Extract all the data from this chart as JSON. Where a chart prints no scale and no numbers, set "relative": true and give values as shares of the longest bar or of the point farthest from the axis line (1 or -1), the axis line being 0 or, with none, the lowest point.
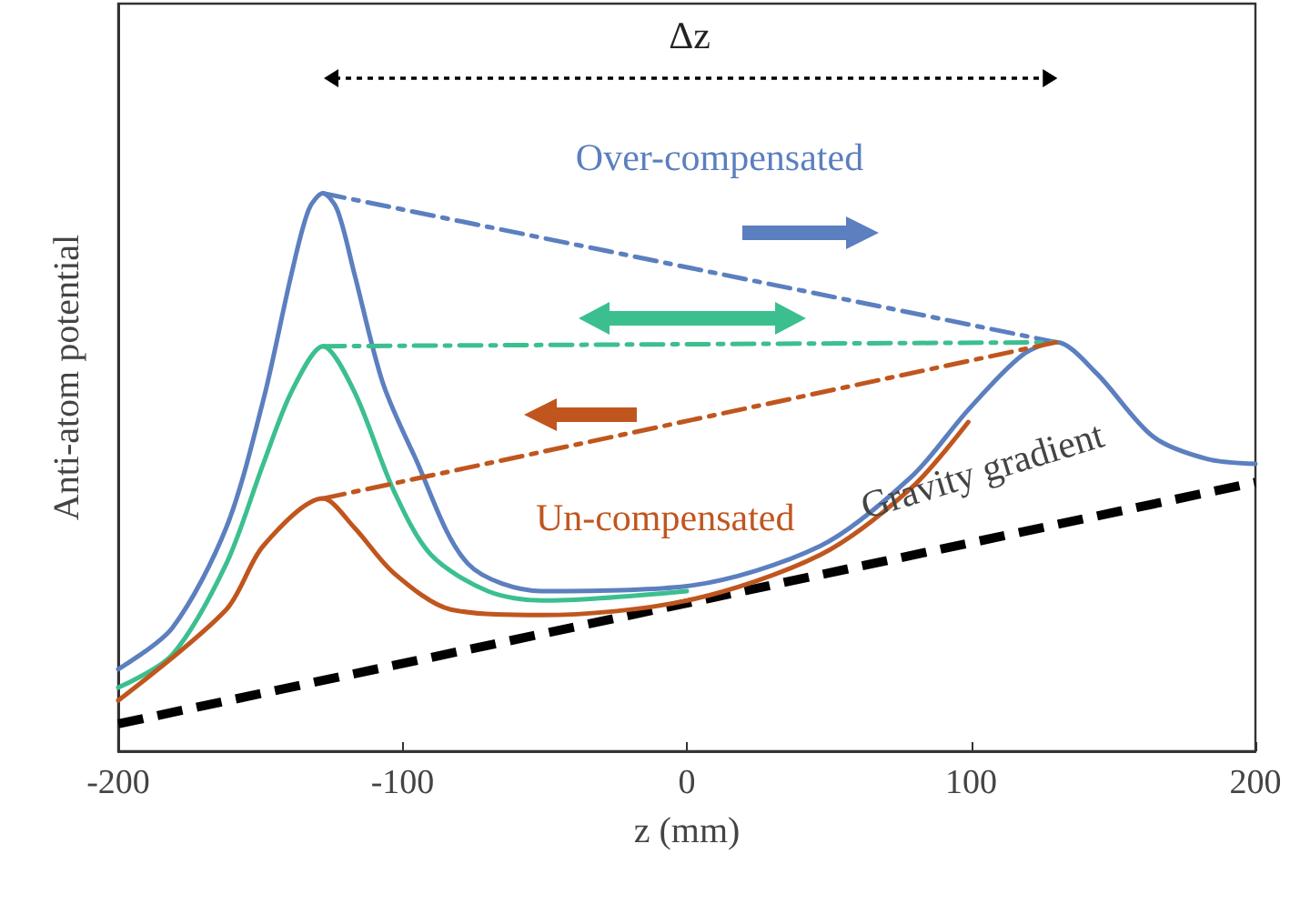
{
  "chart_data": {
    "type": "line",
    "relative": true,
    "xlabel": "z (mm)",
    "ylabel": "Anti-atom potential",
    "xlim": [
      -200,
      200
    ],
    "xticks": [
      -200,
      -100,
      0,
      100,
      200
    ],
    "tick_labels": "x",
    "grid": false,
    "legend": false,
    "marker": "none",
    "annotations": [
      "Δz"
    ],
    "series": [
      {
        "name": "Gravity gradient",
        "color": "#000000",
        "line_style": "dashed",
        "x": [
          -200,
          200
        ],
        "values": [
          0.049,
          0.482
        ]
      },
      {
        "name": "Over-compensated",
        "color": "#5b7fbf",
        "x": [
          -200,
          -181,
          -162,
          -149,
          -139,
          -133,
          -128,
          -123,
          -117,
          -107,
          -96,
          -77,
          -51,
          0,
          47,
          79,
          99,
          118,
          130,
          144,
          164,
          183,
          200
        ],
        "values": [
          0.147,
          0.221,
          0.401,
          0.629,
          0.857,
          0.971,
          1.0,
          0.971,
          0.857,
          0.661,
          0.531,
          0.336,
          0.287,
          0.296,
          0.368,
          0.492,
          0.612,
          0.71,
          0.733,
          0.678,
          0.564,
          0.524,
          0.515
        ]
      },
      {
        "color": "#3cbf8f",
        "x": [
          -200,
          -181,
          -162,
          -149,
          -139,
          -128,
          -117,
          -103,
          -90,
          -70,
          -51,
          0
        ],
        "values": [
          0.114,
          0.173,
          0.336,
          0.515,
          0.645,
          0.726,
          0.645,
          0.466,
          0.352,
          0.287,
          0.27,
          0.287
        ]
      },
      {
        "name": "Un-compensated",
        "color": "#c0561e",
        "x": [
          -200,
          -162,
          -149,
          -128,
          -117,
          -103,
          -83,
          -51,
          0,
          47,
          79,
          99
        ],
        "values": [
          0.091,
          0.254,
          0.368,
          0.453,
          0.401,
          0.319,
          0.254,
          0.244,
          0.27,
          0.352,
          0.472,
          0.59
        ]
      },
      {
        "color": "#5b7fbf",
        "line_style": "dashed",
        "x": [
          -128,
          130
        ],
        "values": [
          1.0,
          0.733
        ]
      },
      {
        "color": "#3cbf8f",
        "line_style": "dashed",
        "x": [
          -128,
          130
        ],
        "values": [
          0.726,
          0.733
        ]
      },
      {
        "color": "#c0561e",
        "line_style": "dashed",
        "x": [
          -128,
          130
        ],
        "values": [
          0.453,
          0.733
        ]
      }
    ]
  }
}
